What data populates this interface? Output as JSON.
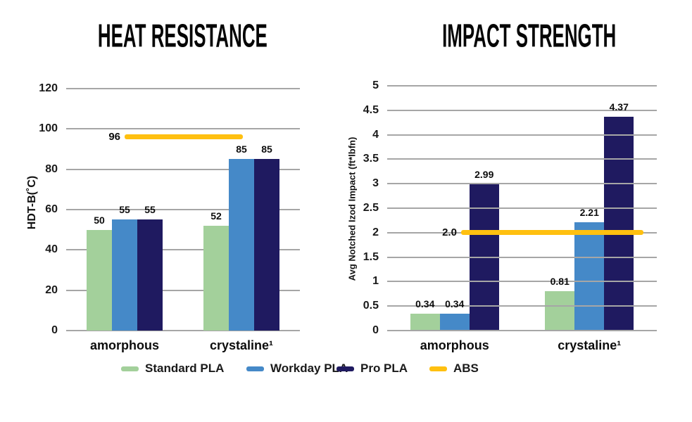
{
  "page": {
    "background": "#ffffff"
  },
  "chart_data": [
    {
      "type": "bar",
      "title": "HEAT RESISTANCE",
      "ylabel": "HDT-B(˚C)",
      "ymin": 0,
      "ymax": 120,
      "ytick_labels_top_to_bottom": [
        "120",
        "100",
        "80",
        "60",
        "40",
        "20",
        "0"
      ],
      "grid": true,
      "gridline_color": "#a6a6a6",
      "gridlines_over_bars": false,
      "categories": [
        "amorphous",
        "crystaline¹"
      ],
      "series": [
        {
          "name": "Standard PLA",
          "color": "#a3d09b",
          "values": [
            50,
            52
          ],
          "labels": [
            "50",
            "52"
          ]
        },
        {
          "name": "Workday PLA",
          "color": "#4589c8",
          "values": [
            55,
            85
          ],
          "labels": [
            "55",
            "85"
          ]
        },
        {
          "name": "Pro PLA",
          "color": "#1f1a60",
          "values": [
            55,
            85
          ],
          "labels": [
            "55",
            "85"
          ]
        }
      ],
      "reference_line": {
        "name": "ABS",
        "value": 96,
        "label": "96",
        "color": "#ffc010",
        "span_pct": [
          25.0,
          75.6
        ]
      }
    },
    {
      "type": "bar",
      "title": "IMPACT STRENGTH",
      "ylabel": "Avg Notched Izod Impact (ft*lbfn)",
      "ymin": 0,
      "ymax": 5,
      "ytick_labels_top_to_bottom": [
        "5",
        "4.5",
        "4",
        "3.5",
        "3",
        "2.5",
        "2",
        "1.5",
        "1",
        "0.5",
        "0"
      ],
      "grid": true,
      "gridline_color": "#a6a6a6",
      "gridlines_over_bars": true,
      "categories": [
        "amorphous",
        "crystaline¹"
      ],
      "series": [
        {
          "name": "Standard PLA",
          "color": "#a3d09b",
          "values": [
            0.34,
            0.81
          ],
          "labels": [
            "0.34",
            "0.81"
          ]
        },
        {
          "name": "Workday PLA",
          "color": "#4589c8",
          "values": [
            0.34,
            2.21
          ],
          "labels": [
            "0.34",
            "2.21"
          ]
        },
        {
          "name": "Pro PLA",
          "color": "#1f1a60",
          "values": [
            2.99,
            4.37
          ],
          "labels": [
            "2.99",
            "4.37"
          ]
        }
      ],
      "reference_line": {
        "name": "ABS",
        "value": 2.0,
        "label": "2.0",
        "color": "#ffc010",
        "span_pct": [
          27.4,
          95.0
        ]
      }
    }
  ],
  "legend": {
    "items": [
      {
        "label": "Standard PLA",
        "color": "#a3d09b"
      },
      {
        "label": "Workday PLA",
        "color": "#4589c8"
      },
      {
        "label": "Pro PLA",
        "color": "#1f1a60"
      },
      {
        "label": "ABS",
        "color": "#ffc010"
      }
    ]
  }
}
